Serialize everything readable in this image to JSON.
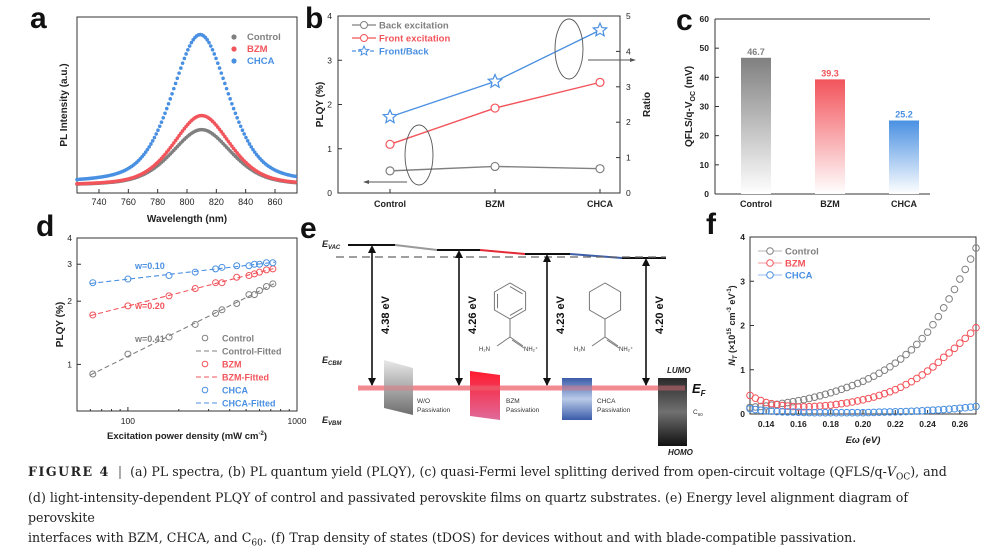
{
  "panels": {
    "a": {
      "label": "a"
    },
    "b": {
      "label": "b"
    },
    "c": {
      "label": "c"
    },
    "d": {
      "label": "d"
    },
    "e": {
      "label": "e"
    },
    "f": {
      "label": "f"
    }
  },
  "colors": {
    "control": "#808080",
    "bzm": "#f2545b",
    "chca": "#4a90e2"
  },
  "chart_data": [
    {
      "id": "a",
      "type": "scatter",
      "title": "",
      "xlabel": "Wavelength (nm)",
      "ylabel": "PL Intensity (a.u.)",
      "xlim": [
        725,
        875
      ],
      "ylim": [
        0,
        1
      ],
      "xticks": [
        740,
        760,
        780,
        800,
        820,
        840,
        860
      ],
      "legend": "top-right",
      "series": [
        {
          "name": "Control",
          "peak_nm": 810,
          "peak": 0.36,
          "fwhm_nm": 48,
          "baseline": 0.04
        },
        {
          "name": "BZM",
          "peak_nm": 810,
          "peak": 0.44,
          "fwhm_nm": 46,
          "baseline": 0.04
        },
        {
          "name": "CHCA",
          "peak_nm": 809,
          "peak": 0.9,
          "fwhm_nm": 46,
          "baseline": 0.05
        }
      ]
    },
    {
      "id": "b",
      "type": "line",
      "xlabel": "",
      "ylabel": "PLQY (%)",
      "y2label": "Ratio",
      "categories": [
        "Control",
        "BZM",
        "CHCA"
      ],
      "ylim": [
        0,
        4
      ],
      "y2lim": [
        0,
        5
      ],
      "yticks": [
        0,
        1,
        2,
        3,
        4
      ],
      "y2ticks": [
        0,
        1,
        2,
        3,
        4,
        5
      ],
      "legend": "top-left",
      "series": [
        {
          "name": "Back excitation",
          "axis": "left",
          "values": [
            0.5,
            0.6,
            0.55
          ]
        },
        {
          "name": "Front excitation",
          "axis": "left",
          "values": [
            1.1,
            1.92,
            2.5
          ]
        },
        {
          "name": "Front/Back",
          "axis": "right",
          "values": [
            2.15,
            3.15,
            4.6
          ]
        }
      ]
    },
    {
      "id": "c",
      "type": "bar",
      "xlabel": "",
      "ylabel": "QFLS/q-V",
      "ylabel_sub": "OC",
      "ylabel_unit": " (mV)",
      "categories": [
        "Control",
        "BZM",
        "CHCA"
      ],
      "values": [
        46.7,
        39.3,
        25.2
      ],
      "value_labels": [
        "46.7",
        "39.3",
        "25.2"
      ],
      "ylim": [
        0,
        60
      ],
      "yticks": [
        0,
        10,
        20,
        30,
        40,
        50,
        60
      ]
    },
    {
      "id": "d",
      "type": "scatter",
      "xlabel": "Excitation power density (mW cm",
      "xlabel_sup": "-2",
      "xlabel_end": ")",
      "ylabel": "PLQY (%)",
      "xscale": "log",
      "yscale": "log",
      "xlim": [
        50,
        1000
      ],
      "ylim": [
        0.6,
        4
      ],
      "xticks": [
        100,
        1000
      ],
      "yticks": [
        1,
        2,
        3,
        4
      ],
      "x": [
        62,
        100,
        175,
        250,
        330,
        360,
        440,
        520,
        560,
        600,
        660,
        720
      ],
      "series": [
        {
          "name": "Control",
          "fit_name": "Control-Fitted",
          "slope_label": "w=0.41",
          "values": [
            0.9,
            1.12,
            1.35,
            1.55,
            1.75,
            1.82,
            1.95,
            2.15,
            2.15,
            2.25,
            2.35,
            2.42
          ]
        },
        {
          "name": "BZM",
          "fit_name": "BZM-Fitted",
          "slope_label": "w=0.20",
          "values": [
            1.72,
            1.9,
            2.12,
            2.3,
            2.45,
            2.45,
            2.6,
            2.65,
            2.7,
            2.75,
            2.82,
            2.85
          ]
        },
        {
          "name": "CHCA",
          "fit_name": "CHCA-Fitted",
          "slope_label": "w=0.10",
          "values": [
            2.45,
            2.55,
            2.65,
            2.75,
            2.85,
            2.9,
            2.95,
            2.95,
            3.0,
            3.0,
            3.05,
            3.05
          ]
        }
      ],
      "legend": "bottom-right"
    },
    {
      "id": "f",
      "type": "scatter",
      "xlabel": "Eω (eV)",
      "ylabel": "N",
      "ylabel_sub": "T",
      "ylabel_rest": " (×10",
      "ylabel_sup1": "15",
      "ylabel_mid": " cm",
      "ylabel_sup2": "-3",
      "ylabel_end": " eV",
      "ylabel_sup3": "-1",
      "ylabel_close": ")",
      "xlim": [
        0.13,
        0.27
      ],
      "ylim": [
        0,
        4
      ],
      "xticks": [
        0.14,
        0.16,
        0.18,
        0.2,
        0.22,
        0.24,
        0.26
      ],
      "yticks": [
        0,
        1,
        2,
        3,
        4
      ],
      "legend": "top-left",
      "series": [
        {
          "name": "Control",
          "points": [
            [
              0.13,
              0.15
            ],
            [
              0.14,
              0.18
            ],
            [
              0.15,
              0.24
            ],
            [
              0.16,
              0.3
            ],
            [
              0.17,
              0.38
            ],
            [
              0.18,
              0.48
            ],
            [
              0.19,
              0.6
            ],
            [
              0.2,
              0.74
            ],
            [
              0.21,
              0.92
            ],
            [
              0.22,
              1.15
            ],
            [
              0.23,
              1.45
            ],
            [
              0.24,
              1.85
            ],
            [
              0.25,
              2.4
            ],
            [
              0.26,
              3.05
            ],
            [
              0.27,
              3.75
            ]
          ]
        },
        {
          "name": "BZM",
          "points": [
            [
              0.13,
              0.42
            ],
            [
              0.14,
              0.26
            ],
            [
              0.15,
              0.19
            ],
            [
              0.16,
              0.16
            ],
            [
              0.17,
              0.17
            ],
            [
              0.18,
              0.2
            ],
            [
              0.19,
              0.25
            ],
            [
              0.2,
              0.32
            ],
            [
              0.21,
              0.42
            ],
            [
              0.22,
              0.55
            ],
            [
              0.23,
              0.73
            ],
            [
              0.24,
              0.97
            ],
            [
              0.25,
              1.28
            ],
            [
              0.26,
              1.6
            ],
            [
              0.27,
              1.95
            ]
          ]
        },
        {
          "name": "CHCA",
          "points": [
            [
              0.13,
              0.12
            ],
            [
              0.14,
              0.07
            ],
            [
              0.15,
              0.05
            ],
            [
              0.16,
              0.04
            ],
            [
              0.17,
              0.03
            ],
            [
              0.18,
              0.03
            ],
            [
              0.19,
              0.03
            ],
            [
              0.2,
              0.03
            ],
            [
              0.21,
              0.04
            ],
            [
              0.22,
              0.05
            ],
            [
              0.23,
              0.06
            ],
            [
              0.24,
              0.08
            ],
            [
              0.25,
              0.1
            ],
            [
              0.26,
              0.13
            ],
            [
              0.27,
              0.17
            ]
          ]
        }
      ]
    }
  ],
  "diagram_e": {
    "evac": "E",
    "evac_sub": "VAC",
    "ecbm": "E",
    "ecbm_sub": "CBM",
    "evbm": "E",
    "evbm_sub": "VBM",
    "ef": "E",
    "ef_sub": "F",
    "lumo": "LUMO",
    "homo": "HOMO",
    "energies": [
      "4.38 eV",
      "4.26 eV",
      "4.23 eV",
      "4.20 eV"
    ],
    "blocks": [
      {
        "label1": "W/O",
        "label2": "Passivation"
      },
      {
        "label1": "BZM",
        "label2": "Passivation"
      },
      {
        "label1": "CHCA",
        "label2": "Passivation"
      },
      {
        "label1": "C",
        "label1_sub": "60",
        "label2": ""
      }
    ],
    "molecule_labels": {
      "h2n": "H₂N",
      "nh2": "NH₂⁺"
    }
  },
  "caption": {
    "figure": "FIGURE 4",
    "sep": "|",
    "line1a": "(a) PL spectra, (b) PL quantum yield (PLQY), (c) quasi-Fermi level splitting derived from open-circuit voltage (QFLS/q-",
    "line1_v": "V",
    "line1_sub": "OC",
    "line1b": "), and",
    "line2": "(d) light-intensity-dependent PLQY of control and passivated perovskite films on quartz substrates. (e) Energy level alignment diagram of perovskite",
    "line3a": "interfaces with BZM, CHCA, and C",
    "line3_sub": "60",
    "line3b": ". (f) Trap density of states (tDOS) for devices without and with blade-compatible passivation."
  }
}
